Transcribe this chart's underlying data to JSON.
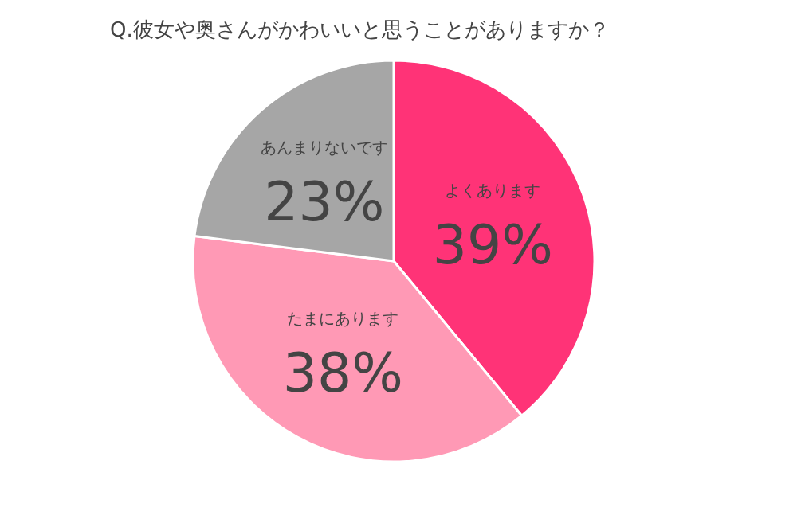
{
  "chart_data": {
    "type": "pie",
    "title": "Q.彼女や奥さんがかわいいと思うことがありますか？",
    "categories": [
      "よくあります",
      "たまにあります",
      "あんまりないです"
    ],
    "values": [
      39,
      38,
      23
    ],
    "value_labels": [
      "39%",
      "38%",
      "23%"
    ],
    "colors": [
      "#ff3377",
      "#ff99b5",
      "#a6a6a6"
    ],
    "legend": false
  }
}
